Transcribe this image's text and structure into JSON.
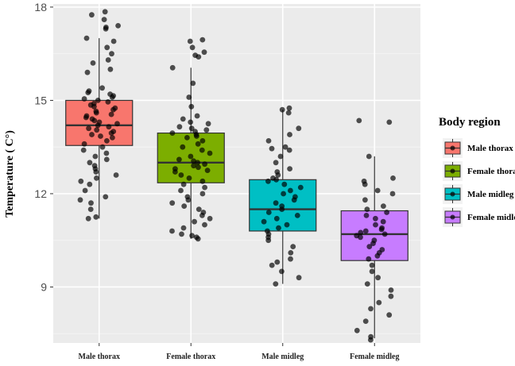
{
  "chart_data": {
    "type": "box",
    "title": "",
    "xlabel": "",
    "ylabel": "Temperature ( C°)",
    "ylim": [
      7.2,
      18.1
    ],
    "yticks": [
      9,
      12,
      15,
      18
    ],
    "grid": true,
    "legend_title": "Body region",
    "legend_position": "right",
    "categories": [
      "Male thorax",
      "Female thorax",
      "Male midleg",
      "Female midleg"
    ],
    "series": [
      {
        "name": "Male thorax",
        "color": "#F8766D",
        "box": {
          "lower_whisker": 11.2,
          "q1": 13.55,
          "median": 14.2,
          "q3": 15.0,
          "upper_whisker": 17.0
        },
        "points": [
          17.85,
          17.75,
          17.6,
          17.4,
          17.35,
          17.3,
          17.0,
          16.9,
          16.7,
          16.5,
          16.3,
          16.2,
          16.0,
          15.9,
          15.4,
          15.3,
          15.25,
          15.2,
          15.15,
          15.1,
          15.05,
          15.0,
          14.95,
          14.9,
          14.85,
          14.8,
          14.75,
          14.7,
          14.65,
          14.6,
          14.55,
          14.5,
          14.45,
          14.4,
          14.35,
          14.3,
          14.25,
          14.2,
          14.15,
          14.1,
          14.05,
          14.0,
          13.95,
          13.9,
          13.85,
          13.8,
          13.7,
          13.6,
          13.5,
          13.4,
          13.3,
          13.2,
          13.1,
          13.0,
          12.9,
          12.8,
          12.7,
          12.6,
          12.5,
          12.4,
          12.3,
          12.1,
          11.9,
          11.8,
          11.7,
          11.5,
          11.25,
          11.2
        ]
      },
      {
        "name": "Female thorax",
        "color": "#7CAE00",
        "box": {
          "lower_whisker": 10.55,
          "q1": 12.35,
          "median": 13.0,
          "q3": 13.95,
          "upper_whisker": 16.05
        },
        "points": [
          16.95,
          16.9,
          16.7,
          16.55,
          16.45,
          16.4,
          16.05,
          15.55,
          15.1,
          14.8,
          14.5,
          14.4,
          14.3,
          14.25,
          14.15,
          14.1,
          14.05,
          14.0,
          13.95,
          13.9,
          13.85,
          13.8,
          13.7,
          13.6,
          13.5,
          13.4,
          13.3,
          13.2,
          13.1,
          13.05,
          13.0,
          12.95,
          12.9,
          12.85,
          12.8,
          12.75,
          12.7,
          12.6,
          12.5,
          12.4,
          12.3,
          12.2,
          12.1,
          12.0,
          11.9,
          11.8,
          11.7,
          11.6,
          11.5,
          11.4,
          11.3,
          11.2,
          11.1,
          11.0,
          10.9,
          10.8,
          10.7,
          10.65,
          10.6,
          10.55
        ]
      },
      {
        "name": "Male midleg",
        "color": "#00BFC4",
        "box": {
          "lower_whisker": 9.1,
          "q1": 10.8,
          "median": 11.5,
          "q3": 12.45,
          "upper_whisker": 14.7
        },
        "points": [
          14.75,
          14.7,
          14.6,
          14.1,
          13.9,
          13.7,
          13.5,
          13.45,
          13.4,
          13.2,
          13.0,
          12.8,
          12.7,
          12.6,
          12.5,
          12.45,
          12.4,
          12.3,
          12.2,
          12.1,
          12.0,
          11.9,
          11.8,
          11.7,
          11.6,
          11.5,
          11.4,
          11.3,
          11.2,
          11.1,
          11.0,
          10.9,
          10.8,
          10.7,
          10.6,
          10.5,
          10.3,
          10.1,
          9.9,
          9.8,
          9.7,
          9.5,
          9.3,
          9.1
        ]
      },
      {
        "name": "Female midleg",
        "color": "#C77CFF",
        "box": {
          "lower_whisker": 7.35,
          "q1": 9.85,
          "median": 10.7,
          "q3": 11.45,
          "upper_whisker": 13.2
        },
        "points": [
          14.35,
          14.3,
          13.2,
          12.5,
          12.4,
          12.3,
          12.1,
          12.0,
          11.8,
          11.6,
          11.5,
          11.4,
          11.3,
          11.2,
          11.1,
          11.0,
          10.9,
          10.85,
          10.8,
          10.75,
          10.7,
          10.65,
          10.6,
          10.5,
          10.4,
          10.3,
          10.2,
          10.1,
          10.0,
          9.9,
          9.7,
          9.5,
          9.3,
          9.1,
          8.9,
          8.7,
          8.5,
          8.3,
          8.1,
          7.9,
          7.6,
          7.4,
          7.3
        ]
      }
    ]
  }
}
